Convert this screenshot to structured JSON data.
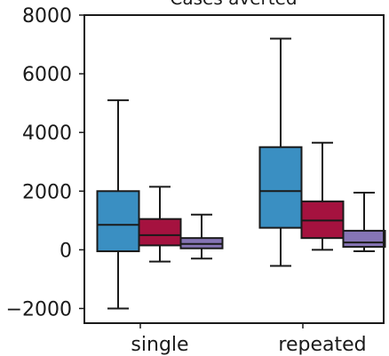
{
  "chart_data": {
    "type": "box",
    "title": "Cases averted",
    "xlabel": "",
    "ylabel": "",
    "ylim": [
      -2500,
      8000
    ],
    "yticks": [
      -2000,
      0,
      2000,
      4000,
      6000,
      8000
    ],
    "ytick_labels": [
      "−2000",
      "0",
      "2000",
      "4000",
      "6000",
      "8000"
    ],
    "grid": false,
    "legend": "none",
    "categories": [
      "single",
      "repeated"
    ],
    "series": [
      {
        "color": "#3a8fc2",
        "boxes": [
          {
            "whislo": -2000,
            "q1": -50,
            "med": 850,
            "q3": 2000,
            "whishi": 5100
          },
          {
            "whislo": -550,
            "q1": 750,
            "med": 2000,
            "q3": 3500,
            "whishi": 7200
          }
        ]
      },
      {
        "color": "#a5123f",
        "boxes": [
          {
            "whislo": -400,
            "q1": 150,
            "med": 500,
            "q3": 1050,
            "whishi": 2150
          },
          {
            "whislo": 0,
            "q1": 400,
            "med": 1000,
            "q3": 1650,
            "whishi": 3650
          }
        ]
      },
      {
        "color": "#8675b5",
        "boxes": [
          {
            "whislo": -300,
            "q1": 50,
            "med": 200,
            "q3": 400,
            "whishi": 1200
          },
          {
            "whislo": -50,
            "q1": 100,
            "med": 250,
            "q3": 650,
            "whishi": 1950
          }
        ]
      }
    ]
  }
}
